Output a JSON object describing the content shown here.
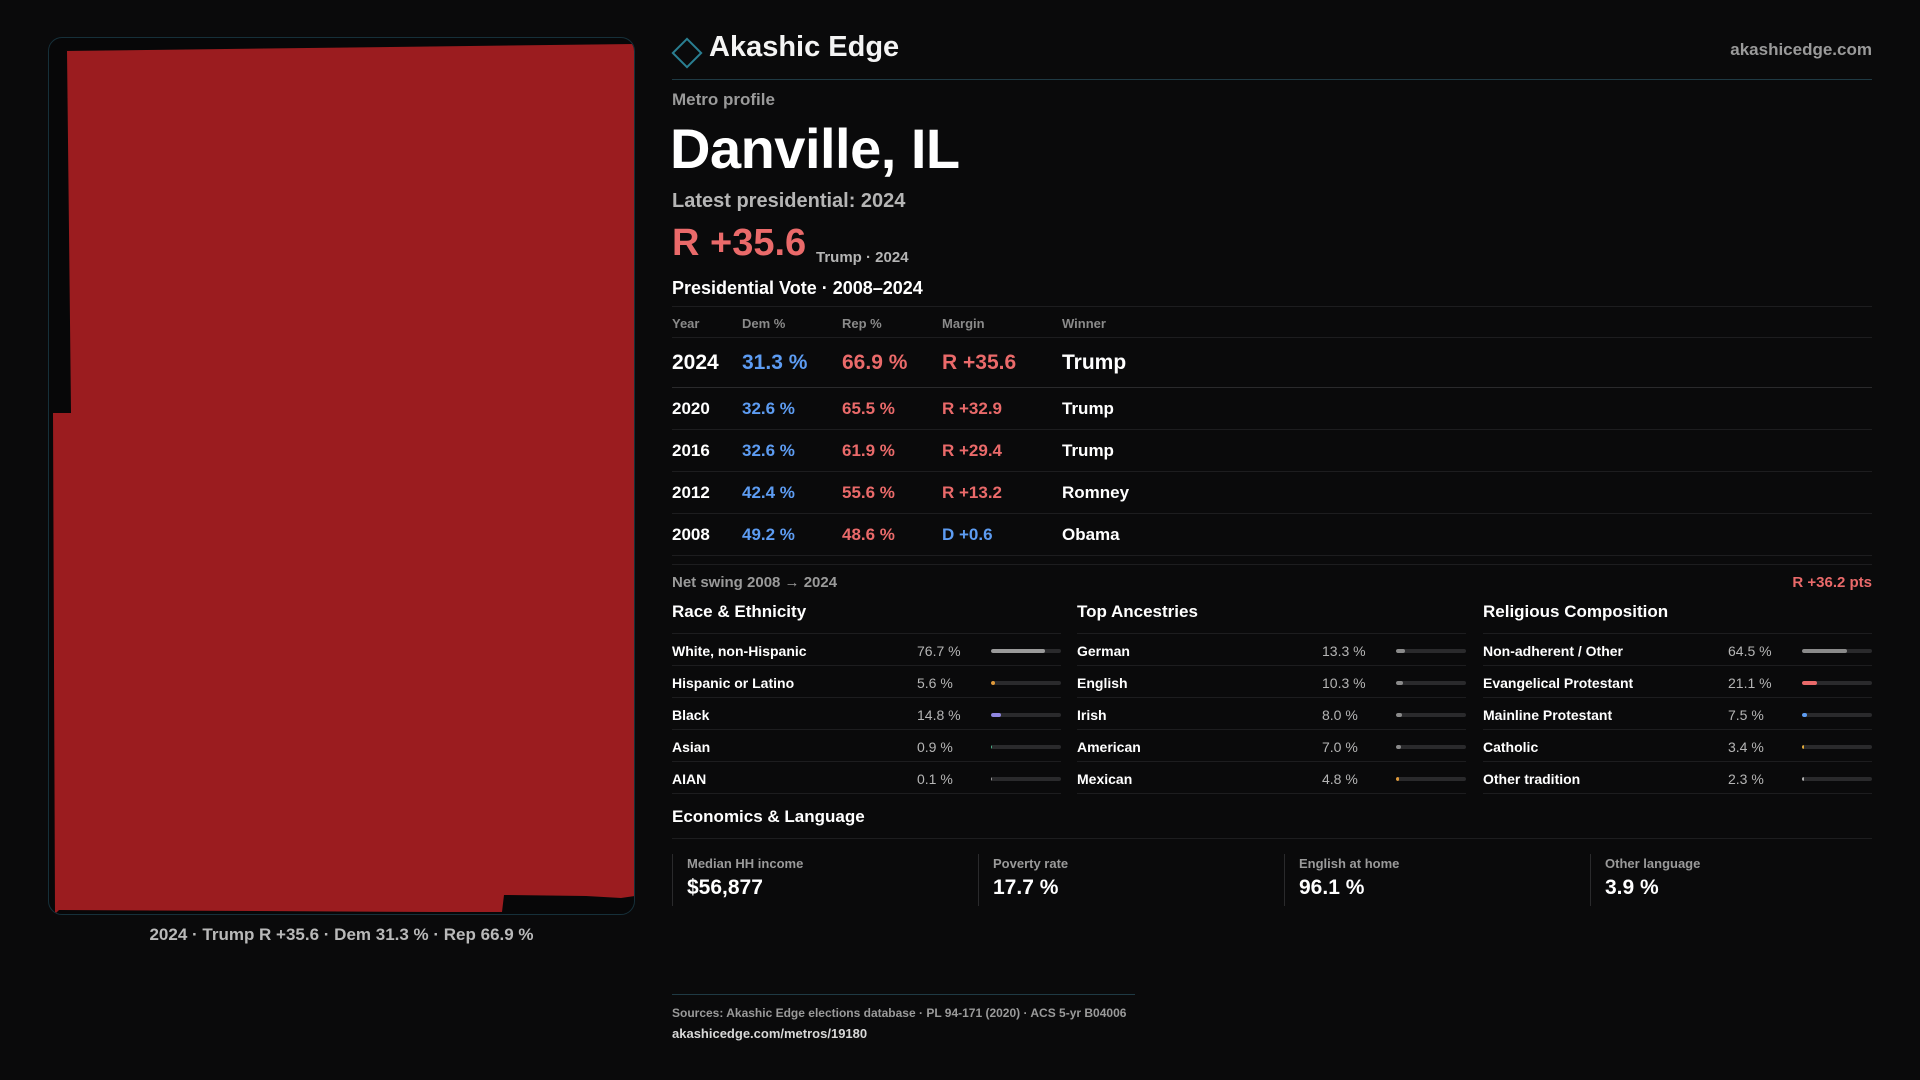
{
  "brand": {
    "name": "Akashic Edge",
    "url": "akashicedge.com"
  },
  "profile": {
    "eyebrow": "Metro profile",
    "city": "Danville, IL",
    "latest": "Latest presidential: 2024",
    "margin": "R +35.6",
    "margin_sub": "Trump · 2024"
  },
  "map": {
    "caption": "2024 · Trump R +35.6 · Dem 31.3 % · Rep 66.9 %",
    "fill_color": "#9b1c1f"
  },
  "presidential": {
    "title": "Presidential Vote · 2008–2024",
    "columns": {
      "year": "Year",
      "dem": "Dem %",
      "rep": "Rep %",
      "margin": "Margin",
      "winner": "Winner"
    },
    "rows": [
      {
        "year": "2024",
        "dem": "31.3 %",
        "rep": "66.9 %",
        "margin": "R +35.6",
        "winner": "Trump"
      },
      {
        "year": "2020",
        "dem": "32.6 %",
        "rep": "65.5 %",
        "margin": "R +32.9",
        "winner": "Trump"
      },
      {
        "year": "2016",
        "dem": "32.6 %",
        "rep": "61.9 %",
        "margin": "R +29.4",
        "winner": "Trump"
      },
      {
        "year": "2012",
        "dem": "42.4 %",
        "rep": "55.6 %",
        "margin": "R +13.2",
        "winner": "Romney"
      },
      {
        "year": "2008",
        "dem": "49.2 %",
        "rep": "48.6 %",
        "margin": "D +0.6",
        "winner": "Obama"
      }
    ],
    "swing_label": "Net swing 2008 → 2024",
    "swing_value": "R +36.2 pts"
  },
  "race": {
    "title": "Race & Ethnicity",
    "items": [
      {
        "label": "White, non-Hispanic",
        "value": "76.7 %",
        "share": 0.767,
        "color": "#9a9a9a"
      },
      {
        "label": "Hispanic or Latino",
        "value": "5.6 %",
        "share": 0.056,
        "color": "#e09a3a"
      },
      {
        "label": "Black",
        "value": "14.8 %",
        "share": 0.148,
        "color": "#8f86e0"
      },
      {
        "label": "Asian",
        "value": "0.9 %",
        "share": 0.009,
        "color": "#4caf8a"
      },
      {
        "label": "AIAN",
        "value": "0.1 %",
        "share": 0.001,
        "color": "#9a9a9a"
      }
    ]
  },
  "ancestry": {
    "title": "Top Ancestries",
    "items": [
      {
        "label": "German",
        "value": "13.3 %",
        "share": 0.133,
        "color": "#8a8a8a"
      },
      {
        "label": "English",
        "value": "10.3 %",
        "share": 0.103,
        "color": "#8a8a8a"
      },
      {
        "label": "Irish",
        "value": "8.0 %",
        "share": 0.08,
        "color": "#8a8a8a"
      },
      {
        "label": "American",
        "value": "7.0 %",
        "share": 0.07,
        "color": "#8a8a8a"
      },
      {
        "label": "Mexican",
        "value": "4.8 %",
        "share": 0.048,
        "color": "#e09a3a"
      }
    ]
  },
  "religion": {
    "title": "Religious Composition",
    "items": [
      {
        "label": "Non-adherent / Other",
        "value": "64.5 %",
        "share": 0.645,
        "color": "#8a8a8a"
      },
      {
        "label": "Evangelical Protestant",
        "value": "21.1 %",
        "share": 0.211,
        "color": "#ea6a6a"
      },
      {
        "label": "Mainline Protestant",
        "value": "7.5 %",
        "share": 0.075,
        "color": "#5d9cf2"
      },
      {
        "label": "Catholic",
        "value": "3.4 %",
        "share": 0.034,
        "color": "#e0a93a"
      },
      {
        "label": "Other tradition",
        "value": "2.3 %",
        "share": 0.023,
        "color": "#b0b0b0"
      }
    ]
  },
  "economics": {
    "title": "Economics & Language",
    "cards": [
      {
        "label": "Median HH income",
        "value": "$56,877"
      },
      {
        "label": "Poverty rate",
        "value": "17.7 %"
      },
      {
        "label": "English at home",
        "value": "96.1 %"
      },
      {
        "label": "Other language",
        "value": "3.9 %"
      }
    ]
  },
  "footer": {
    "sources": "Sources: Akashic Edge elections database · PL 94-171 (2020) · ACS 5-yr B04006",
    "url": "akashicedge.com/metros/19180"
  },
  "colors": {
    "rep": "#ea6a6a",
    "dem": "#5d9cf2",
    "accent": "#2a7f92"
  }
}
